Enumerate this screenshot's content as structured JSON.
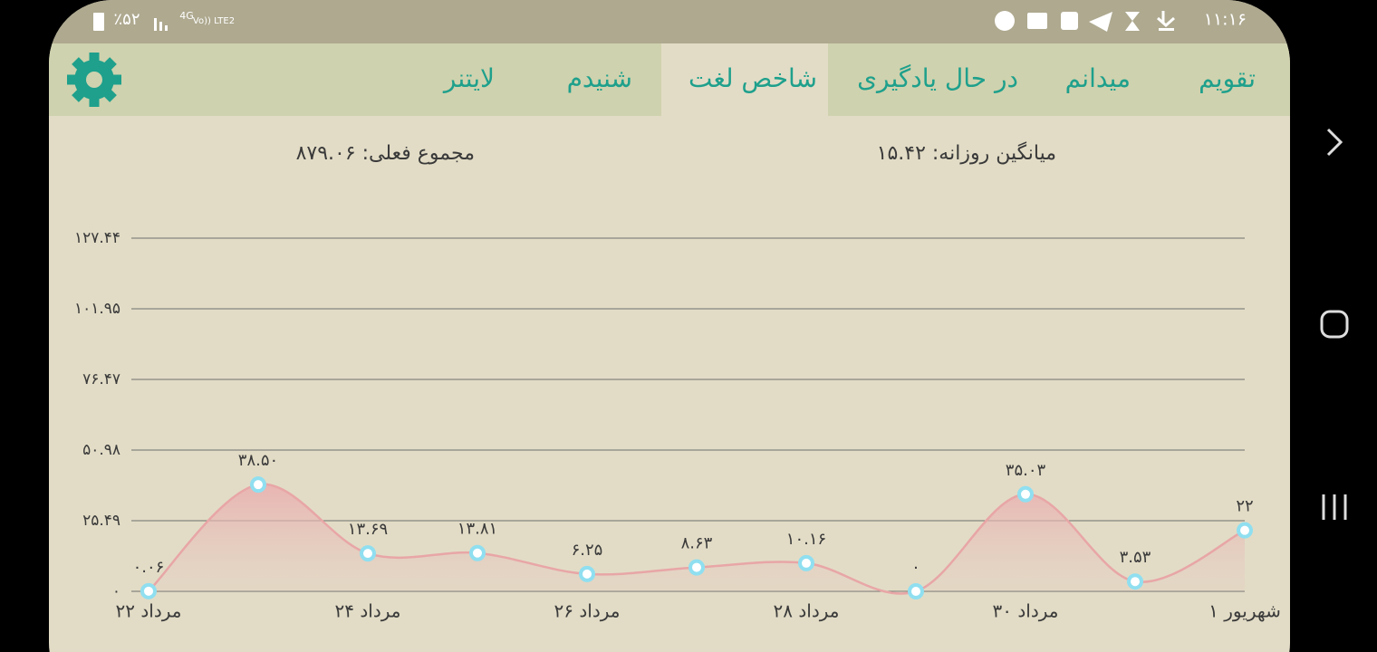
{
  "status_bar": {
    "time": "۱۱:۱۶",
    "battery": "٪۵۲",
    "network": "4G",
    "volte": "Vo)) LTE2"
  },
  "tabs": [
    "تقویم",
    "میدانم",
    "در حال یادگیری",
    "شاخص لغت",
    "شنیدم",
    "لایتنر"
  ],
  "active_tab": "شاخص لغت",
  "stats": {
    "daily_average": "میانگین روزانه: ۱۵.۴۲",
    "current_total": "مجموع فعلی: ۸۷۹.۰۶"
  },
  "chart_data": {
    "type": "line",
    "categories": [
      "۲۲ مرداد",
      null,
      "۲۴ مرداد",
      null,
      "۲۶ مرداد",
      null,
      "۲۸ مرداد",
      null,
      "۳۰ مرداد",
      null,
      "۱ شهریور"
    ],
    "values": [
      0.06,
      38.5,
      13.69,
      13.81,
      6.25,
      8.63,
      10.16,
      0,
      35.03,
      3.53,
      22
    ],
    "value_labels": [
      "۰.۰۶",
      "۳۸.۵۰",
      "۱۳.۶۹",
      "۱۳.۸۱",
      "۶.۲۵",
      "۸.۶۳",
      "۱۰.۱۶",
      "۰",
      "۳۵.۰۳",
      "۳.۵۳",
      "۲۲"
    ],
    "color": "#e8a6a6",
    "marker_color": "#8fdff0",
    "ylim": [
      0,
      127.44
    ],
    "yticks": [
      {
        "value": 0,
        "label": "۰"
      },
      {
        "value": 25.49,
        "label": "۲۵.۴۹"
      },
      {
        "value": 50.98,
        "label": "۵۰.۹۸"
      },
      {
        "value": 76.47,
        "label": "۷۶.۴۷"
      },
      {
        "value": 101.95,
        "label": "۱۰۱.۹۵"
      },
      {
        "value": 127.44,
        "label": "۱۲۷.۴۴"
      }
    ],
    "grid": true
  }
}
